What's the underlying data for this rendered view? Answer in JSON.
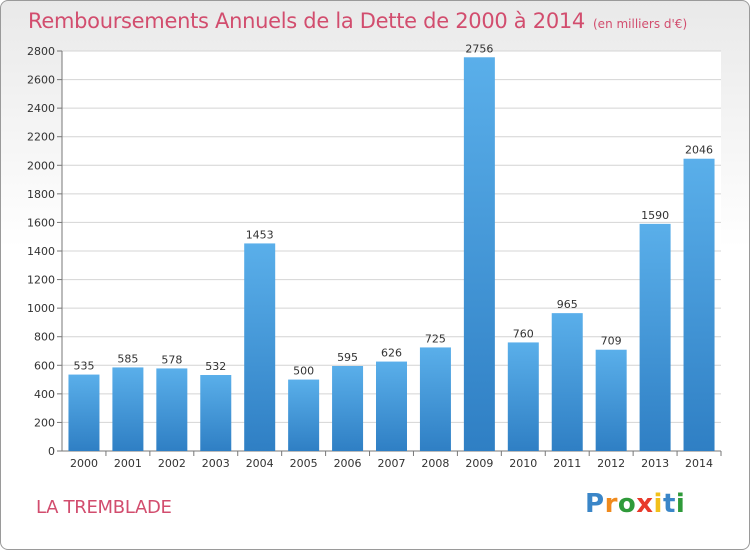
{
  "chart_data": {
    "type": "bar",
    "title": "Remboursements Annuels de la Dette de 2000 à 2014",
    "unit_note": "(en milliers d'€)",
    "categories": [
      "2000",
      "2001",
      "2002",
      "2003",
      "2004",
      "2005",
      "2006",
      "2007",
      "2008",
      "2009",
      "2010",
      "2011",
      "2012",
      "2013",
      "2014"
    ],
    "values": [
      535,
      585,
      578,
      532,
      1453,
      500,
      595,
      626,
      725,
      2756,
      760,
      965,
      709,
      1590,
      2046
    ],
    "ylim": [
      0,
      2800
    ],
    "yticks": [
      0,
      200,
      400,
      600,
      800,
      1000,
      1200,
      1400,
      1600,
      1800,
      2000,
      2200,
      2400,
      2600,
      2800
    ],
    "grid": true,
    "bar_color": "#4a9fdf"
  },
  "commune": "LA TREMBLADE",
  "logo": {
    "text": "Proxiti",
    "letter_colors": [
      "#3a86c8",
      "#f08a1c",
      "#2f9a3a",
      "#e8392a",
      "#f2c01a",
      "#3a86c8",
      "#2f9a3a"
    ]
  }
}
